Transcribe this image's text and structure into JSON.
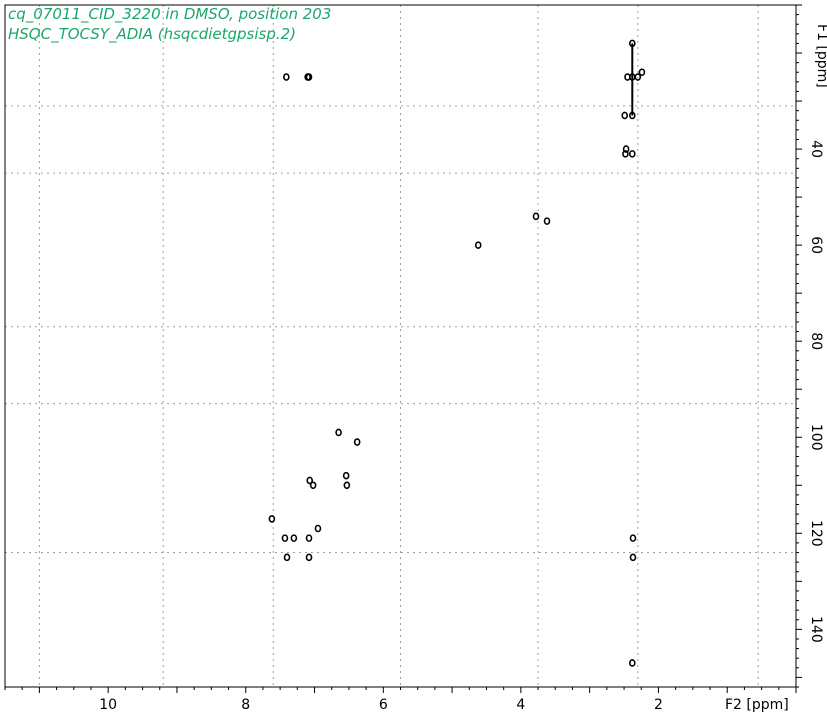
{
  "chart_data": {
    "type": "scatter",
    "title": "cq_07011_CID_3220 in DMSO, position 203",
    "subtitle": "HSQC_TOCSY_ADIA (hsqcdietgpsisp.2)",
    "xlabel": "F2 [ppm]",
    "ylabel": "F1 [ppm]",
    "xlim": [
      11.5,
      0
    ],
    "ylim": [
      10,
      152
    ],
    "x_ticks": [
      10,
      8,
      6,
      4,
      2
    ],
    "y_ticks": [
      40,
      60,
      80,
      100,
      120,
      140
    ],
    "x_grid": [
      11,
      9.2,
      7.6,
      5.75,
      3.75,
      2.3,
      0.55
    ],
    "y_grid": [
      31,
      45,
      77,
      93,
      124
    ],
    "grid": true,
    "colors": {
      "title": "#1aa86a",
      "peaks": "#000000",
      "grid": "#a0a0a0"
    },
    "peaks": [
      {
        "x": 7.41,
        "y": 25
      },
      {
        "x": 7.1,
        "y": 25
      },
      {
        "x": 7.08,
        "y": 25
      },
      {
        "x": 2.38,
        "y": 25
      },
      {
        "x": 2.45,
        "y": 25
      },
      {
        "x": 2.3,
        "y": 25
      },
      {
        "x": 2.24,
        "y": 24
      },
      {
        "x": 2.38,
        "y": 18
      },
      {
        "x": 2.38,
        "y": 33
      },
      {
        "x": 2.49,
        "y": 33
      },
      {
        "x": 2.47,
        "y": 40
      },
      {
        "x": 2.48,
        "y": 41
      },
      {
        "x": 2.38,
        "y": 41
      },
      {
        "x": 3.78,
        "y": 54
      },
      {
        "x": 3.62,
        "y": 55
      },
      {
        "x": 4.62,
        "y": 60
      },
      {
        "x": 6.65,
        "y": 99
      },
      {
        "x": 6.38,
        "y": 101
      },
      {
        "x": 7.07,
        "y": 109
      },
      {
        "x": 7.02,
        "y": 110
      },
      {
        "x": 6.54,
        "y": 108
      },
      {
        "x": 6.53,
        "y": 110
      },
      {
        "x": 7.62,
        "y": 117
      },
      {
        "x": 6.95,
        "y": 119
      },
      {
        "x": 7.43,
        "y": 121
      },
      {
        "x": 7.3,
        "y": 121
      },
      {
        "x": 7.08,
        "y": 121
      },
      {
        "x": 7.4,
        "y": 125
      },
      {
        "x": 7.08,
        "y": 125
      },
      {
        "x": 2.37,
        "y": 121
      },
      {
        "x": 2.37,
        "y": 125
      },
      {
        "x": 2.38,
        "y": 147
      }
    ]
  }
}
